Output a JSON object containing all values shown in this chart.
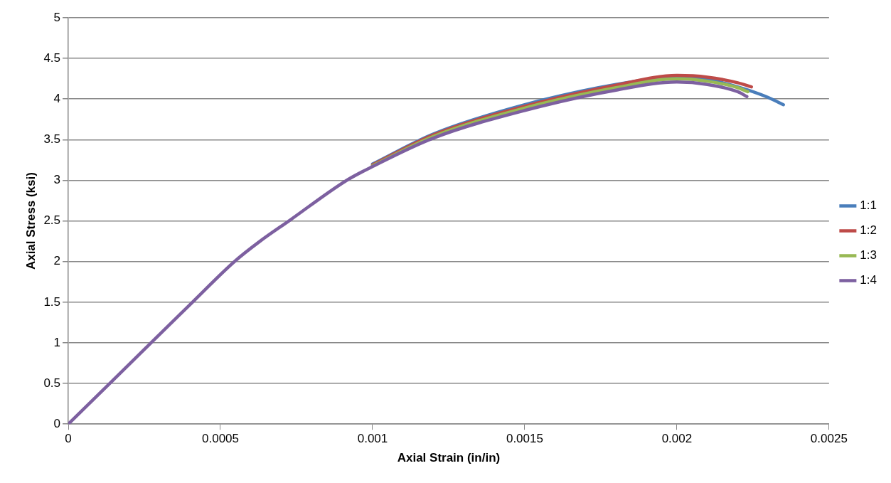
{
  "chart_data": {
    "type": "line",
    "xlabel": "Axial Strain (in/in)",
    "ylabel": "Axial Stress (ksi)",
    "xlim": [
      0,
      0.0025
    ],
    "xticks": [
      0,
      0.0005,
      0.001,
      0.0015,
      0.002,
      0.0025
    ],
    "ylim": [
      0,
      5
    ],
    "yticks": [
      0,
      0.5,
      1,
      1.5,
      2,
      2.5,
      3,
      3.5,
      4,
      4.5,
      5
    ],
    "grid": "y",
    "legend": "right",
    "marker": "none",
    "line_style": "solid",
    "series": [
      {
        "name": "1:1",
        "color": "#4a7ebb",
        "x": [
          0.001,
          0.0012,
          0.0015,
          0.0018,
          0.002,
          0.0021,
          0.0022,
          0.0023,
          0.00235
        ],
        "values": [
          3.2,
          3.57,
          3.93,
          4.18,
          4.27,
          4.24,
          4.15,
          4.02,
          3.93
        ]
      },
      {
        "name": "1:2",
        "color": "#be4b48",
        "x": [
          0.001,
          0.0012,
          0.0015,
          0.0018,
          0.002,
          0.0021,
          0.0022,
          0.002245
        ],
        "values": [
          3.19,
          3.56,
          3.91,
          4.17,
          4.29,
          4.27,
          4.2,
          4.15
        ]
      },
      {
        "name": "1:3",
        "color": "#98b954",
        "x": [
          0.001,
          0.0012,
          0.0015,
          0.0018,
          0.002,
          0.0021,
          0.0022,
          0.002233
        ],
        "values": [
          3.18,
          3.54,
          3.89,
          4.14,
          4.25,
          4.22,
          4.14,
          4.09
        ]
      },
      {
        "name": "1:4",
        "color": "#7d60a0",
        "x": [
          0,
          0.000136,
          0.000272,
          0.000408,
          0.000546,
          0.00063,
          0.000725,
          0.000915,
          0.001,
          0.0012,
          0.0015,
          0.0018,
          0.002,
          0.0021,
          0.0022,
          0.00223
        ],
        "values": [
          0,
          0.5,
          1,
          1.5,
          2,
          2.25,
          2.5,
          3,
          3.17,
          3.52,
          3.86,
          4.11,
          4.21,
          4.18,
          4.09,
          4.03
        ]
      }
    ]
  }
}
